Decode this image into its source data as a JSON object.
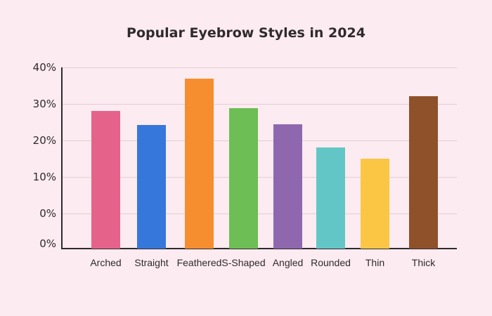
{
  "chart_data": {
    "type": "bar",
    "title": "Popular Eyebrow Styles in 2024",
    "xlabel": "",
    "ylabel": "",
    "categories": [
      "Arched",
      "Straight",
      "Feathered",
      "S-Shaped",
      "Angled",
      "Rounded",
      "Thin",
      "Thick"
    ],
    "values": [
      28,
      24.2,
      37,
      28.8,
      24.4,
      18,
      15,
      32.2
    ],
    "colors": [
      "#e5638a",
      "#3677db",
      "#f68d2e",
      "#6dbe55",
      "#8f67ae",
      "#63c6c6",
      "#fbc644",
      "#8f512a"
    ],
    "y_tick_labels": [
      "40%",
      "30%",
      "20%",
      "10%",
      "0%",
      "0%"
    ],
    "ylim": [
      0,
      40
    ],
    "grid": true,
    "legend": "none"
  }
}
